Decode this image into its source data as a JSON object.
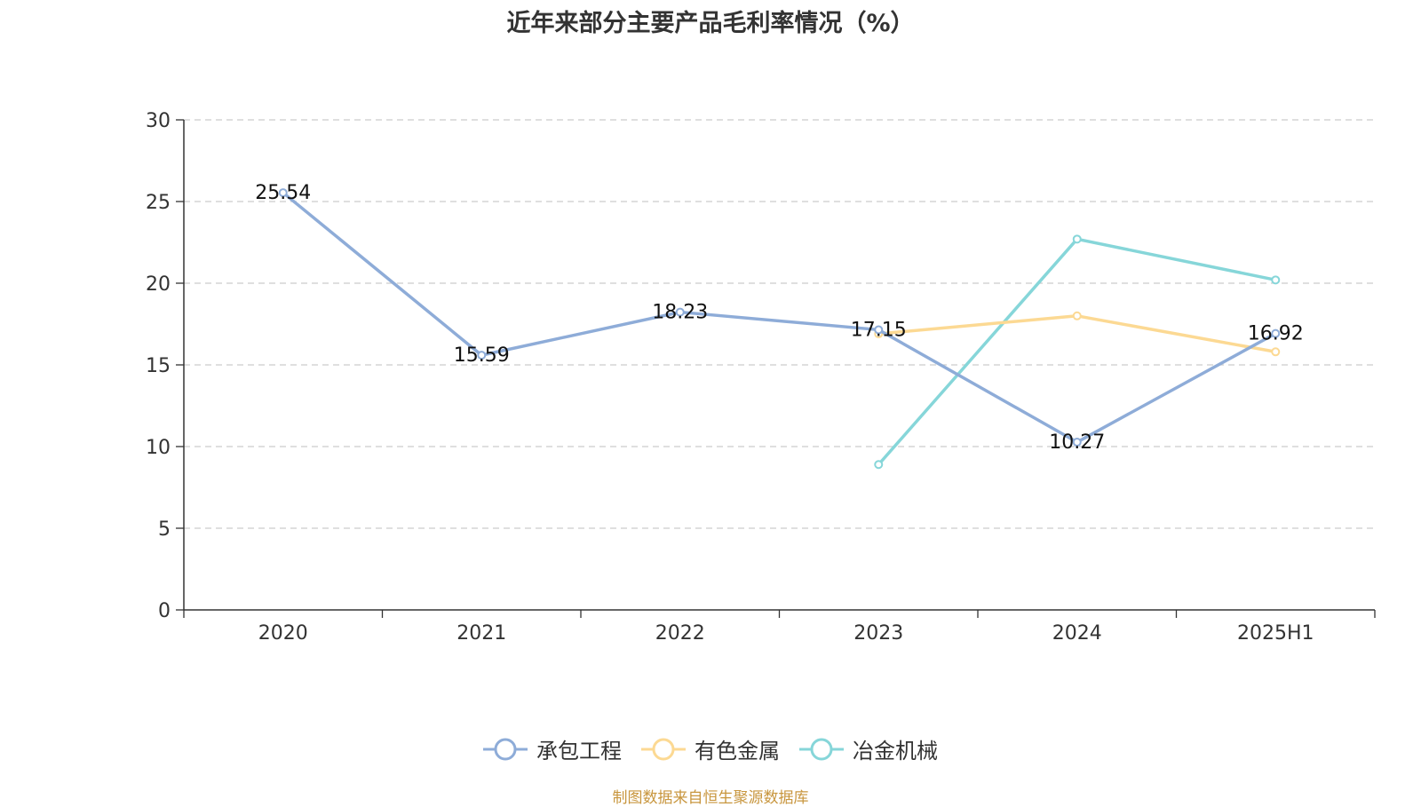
{
  "title": "近年来部分主要产品毛利率情况（%）",
  "source": "制图数据来自恒生聚源数据库",
  "chart_data": {
    "type": "line",
    "title": "近年来部分主要产品毛利率情况（%）",
    "categories": [
      "2020",
      "2021",
      "2022",
      "2023",
      "2024",
      "2025H1"
    ],
    "ylim": [
      0,
      30
    ],
    "yticks": [
      0,
      5,
      10,
      15,
      20,
      25,
      30
    ],
    "grid": true,
    "legend_position": "bottom",
    "series": [
      {
        "name": "承包工程",
        "color": "#8eacd8",
        "values": [
          25.54,
          15.59,
          18.23,
          17.15,
          10.27,
          16.92
        ],
        "labels": [
          "25.54",
          "15.59",
          "18.23",
          "17.15",
          "10.27",
          "16.92"
        ]
      },
      {
        "name": "有色金属",
        "color": "#fcd993",
        "values": [
          null,
          null,
          null,
          16.9,
          18.0,
          15.8
        ]
      },
      {
        "name": "冶金机械",
        "color": "#86d6d9",
        "values": [
          null,
          null,
          null,
          8.9,
          22.7,
          20.2
        ]
      }
    ]
  }
}
